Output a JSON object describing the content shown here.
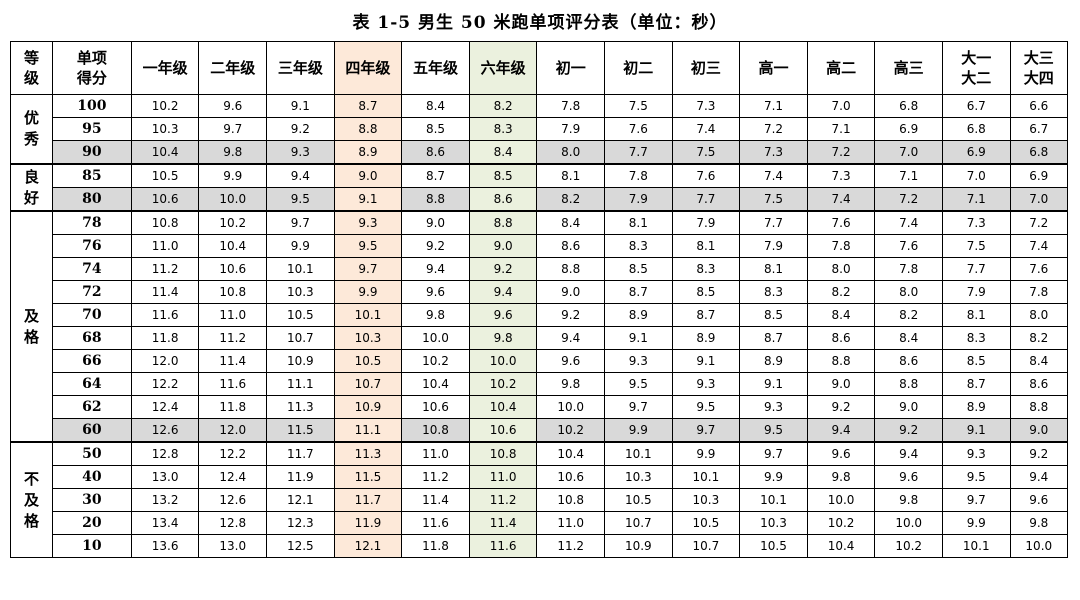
{
  "title": "表 1-5   男生 50 米跑单项评分表（单位：秒）",
  "header": {
    "grade": "等级",
    "score": "单项得分",
    "grades": [
      "一年级",
      "二年级",
      "三年级",
      "四年级",
      "五年级",
      "六年级",
      "初一",
      "初二",
      "初三",
      "高一",
      "高二",
      "高三",
      "大一大二",
      "大三大四"
    ]
  },
  "colors": {
    "highlight_grade4": "#fde9d9",
    "highlight_grade6": "#ebf1de",
    "pass_line_rows": "#d9d9d9"
  },
  "groups": [
    {
      "label": "优秀",
      "rows": [
        {
          "score": "100",
          "values": [
            "10.2",
            "9.6",
            "9.1",
            "8.7",
            "8.4",
            "8.2",
            "7.8",
            "7.5",
            "7.3",
            "7.1",
            "7.0",
            "6.8",
            "6.7",
            "6.6"
          ]
        },
        {
          "score": "95",
          "values": [
            "10.3",
            "9.7",
            "9.2",
            "8.8",
            "8.5",
            "8.3",
            "7.9",
            "7.6",
            "7.4",
            "7.2",
            "7.1",
            "6.9",
            "6.8",
            "6.7"
          ]
        },
        {
          "score": "90",
          "gray": true,
          "values": [
            "10.4",
            "9.8",
            "9.3",
            "8.9",
            "8.6",
            "8.4",
            "8.0",
            "7.7",
            "7.5",
            "7.3",
            "7.2",
            "7.0",
            "6.9",
            "6.8"
          ]
        }
      ]
    },
    {
      "label": "良好",
      "rows": [
        {
          "score": "85",
          "values": [
            "10.5",
            "9.9",
            "9.4",
            "9.0",
            "8.7",
            "8.5",
            "8.1",
            "7.8",
            "7.6",
            "7.4",
            "7.3",
            "7.1",
            "7.0",
            "6.9"
          ]
        },
        {
          "score": "80",
          "gray": true,
          "values": [
            "10.6",
            "10.0",
            "9.5",
            "9.1",
            "8.8",
            "8.6",
            "8.2",
            "7.9",
            "7.7",
            "7.5",
            "7.4",
            "7.2",
            "7.1",
            "7.0"
          ]
        }
      ]
    },
    {
      "label": "及格",
      "rows": [
        {
          "score": "78",
          "values": [
            "10.8",
            "10.2",
            "9.7",
            "9.3",
            "9.0",
            "8.8",
            "8.4",
            "8.1",
            "7.9",
            "7.7",
            "7.6",
            "7.4",
            "7.3",
            "7.2"
          ]
        },
        {
          "score": "76",
          "values": [
            "11.0",
            "10.4",
            "9.9",
            "9.5",
            "9.2",
            "9.0",
            "8.6",
            "8.3",
            "8.1",
            "7.9",
            "7.8",
            "7.6",
            "7.5",
            "7.4"
          ]
        },
        {
          "score": "74",
          "values": [
            "11.2",
            "10.6",
            "10.1",
            "9.7",
            "9.4",
            "9.2",
            "8.8",
            "8.5",
            "8.3",
            "8.1",
            "8.0",
            "7.8",
            "7.7",
            "7.6"
          ]
        },
        {
          "score": "72",
          "values": [
            "11.4",
            "10.8",
            "10.3",
            "9.9",
            "9.6",
            "9.4",
            "9.0",
            "8.7",
            "8.5",
            "8.3",
            "8.2",
            "8.0",
            "7.9",
            "7.8"
          ]
        },
        {
          "score": "70",
          "values": [
            "11.6",
            "11.0",
            "10.5",
            "10.1",
            "9.8",
            "9.6",
            "9.2",
            "8.9",
            "8.7",
            "8.5",
            "8.4",
            "8.2",
            "8.1",
            "8.0"
          ]
        },
        {
          "score": "68",
          "values": [
            "11.8",
            "11.2",
            "10.7",
            "10.3",
            "10.0",
            "9.8",
            "9.4",
            "9.1",
            "8.9",
            "8.7",
            "8.6",
            "8.4",
            "8.3",
            "8.2"
          ]
        },
        {
          "score": "66",
          "values": [
            "12.0",
            "11.4",
            "10.9",
            "10.5",
            "10.2",
            "10.0",
            "9.6",
            "9.3",
            "9.1",
            "8.9",
            "8.8",
            "8.6",
            "8.5",
            "8.4"
          ]
        },
        {
          "score": "64",
          "values": [
            "12.2",
            "11.6",
            "11.1",
            "10.7",
            "10.4",
            "10.2",
            "9.8",
            "9.5",
            "9.3",
            "9.1",
            "9.0",
            "8.8",
            "8.7",
            "8.6"
          ]
        },
        {
          "score": "62",
          "values": [
            "12.4",
            "11.8",
            "11.3",
            "10.9",
            "10.6",
            "10.4",
            "10.0",
            "9.7",
            "9.5",
            "9.3",
            "9.2",
            "9.0",
            "8.9",
            "8.8"
          ]
        },
        {
          "score": "60",
          "gray": true,
          "values": [
            "12.6",
            "12.0",
            "11.5",
            "11.1",
            "10.8",
            "10.6",
            "10.2",
            "9.9",
            "9.7",
            "9.5",
            "9.4",
            "9.2",
            "9.1",
            "9.0"
          ]
        }
      ]
    },
    {
      "label": "不及格",
      "rows": [
        {
          "score": "50",
          "values": [
            "12.8",
            "12.2",
            "11.7",
            "11.3",
            "11.0",
            "10.8",
            "10.4",
            "10.1",
            "9.9",
            "9.7",
            "9.6",
            "9.4",
            "9.3",
            "9.2"
          ]
        },
        {
          "score": "40",
          "values": [
            "13.0",
            "12.4",
            "11.9",
            "11.5",
            "11.2",
            "11.0",
            "10.6",
            "10.3",
            "10.1",
            "9.9",
            "9.8",
            "9.6",
            "9.5",
            "9.4"
          ]
        },
        {
          "score": "30",
          "values": [
            "13.2",
            "12.6",
            "12.1",
            "11.7",
            "11.4",
            "11.2",
            "10.8",
            "10.5",
            "10.3",
            "10.1",
            "10.0",
            "9.8",
            "9.7",
            "9.6"
          ]
        },
        {
          "score": "20",
          "values": [
            "13.4",
            "12.8",
            "12.3",
            "11.9",
            "11.6",
            "11.4",
            "11.0",
            "10.7",
            "10.5",
            "10.3",
            "10.2",
            "10.0",
            "9.9",
            "9.8"
          ]
        },
        {
          "score": "10",
          "values": [
            "13.6",
            "13.0",
            "12.5",
            "12.1",
            "11.8",
            "11.6",
            "11.2",
            "10.9",
            "10.7",
            "10.5",
            "10.4",
            "10.2",
            "10.1",
            "10.0"
          ]
        }
      ]
    }
  ]
}
